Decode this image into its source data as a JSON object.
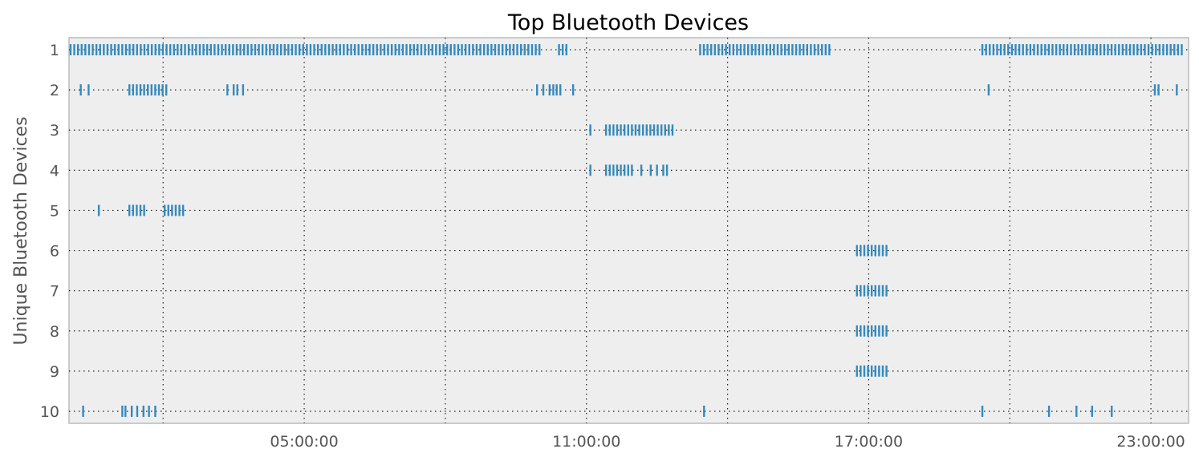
{
  "chart_data": {
    "type": "scatter",
    "title": "Top Bluetooth Devices",
    "xlabel": "",
    "ylabel": "Unique Bluetooth Devices",
    "xlim": [
      "00:00:00",
      "23:48:00"
    ],
    "ylim": [
      10.3,
      0.7
    ],
    "x_ticks": [
      "05:00:00",
      "11:00:00",
      "17:00:00",
      "23:00:00"
    ],
    "y_ticks": [
      "1",
      "2",
      "3",
      "4",
      "5",
      "6",
      "7",
      "8",
      "9",
      "10"
    ],
    "grid": true,
    "marker": "vertical-tick",
    "colors": {
      "marker": "#348abd",
      "background": "#eeeeee",
      "frame": "#bcbcbc"
    },
    "series": [
      {
        "device": 1,
        "segments": [
          [
            "00:02",
            "10:02"
          ],
          [
            "10:25",
            "10:38"
          ],
          [
            "13:25",
            "16:12"
          ],
          [
            "19:25",
            "23:40"
          ]
        ]
      },
      {
        "device": 2,
        "points": [
          "00:15",
          "00:25",
          "03:22",
          "03:42",
          "09:57",
          "10:05",
          "10:43",
          "23:33"
        ],
        "segments": [
          [
            "01:17",
            "02:05"
          ],
          [
            "03:30",
            "03:35"
          ],
          [
            "10:13",
            "10:18"
          ],
          [
            "10:22",
            "10:28"
          ],
          [
            "19:33",
            "19:33"
          ],
          [
            "23:05",
            "23:10"
          ]
        ]
      },
      {
        "device": 3,
        "points": [
          "11:05"
        ],
        "segments": [
          [
            "11:25",
            "12:50"
          ]
        ]
      },
      {
        "device": 4,
        "points": [
          "11:05",
          "12:10",
          "12:22",
          "12:30"
        ],
        "segments": [
          [
            "11:25",
            "12:00"
          ],
          [
            "12:38",
            "12:45"
          ]
        ]
      },
      {
        "device": 5,
        "points": [
          "00:38"
        ],
        "segments": [
          [
            "01:17",
            "01:37"
          ],
          [
            "02:02",
            "02:28"
          ]
        ]
      },
      {
        "device": 6,
        "segments": [
          [
            "16:45",
            "17:23"
          ]
        ]
      },
      {
        "device": 7,
        "segments": [
          [
            "16:45",
            "17:23"
          ]
        ]
      },
      {
        "device": 8,
        "segments": [
          [
            "16:45",
            "17:23"
          ]
        ]
      },
      {
        "device": 9,
        "segments": [
          [
            "16:45",
            "17:23"
          ]
        ]
      },
      {
        "device": 10,
        "points": [
          "00:18",
          "01:08",
          "01:12",
          "01:20",
          "01:27",
          "01:35",
          "01:42",
          "01:50",
          "13:30",
          "19:25",
          "20:50",
          "21:25",
          "21:45",
          "22:10"
        ]
      }
    ]
  }
}
